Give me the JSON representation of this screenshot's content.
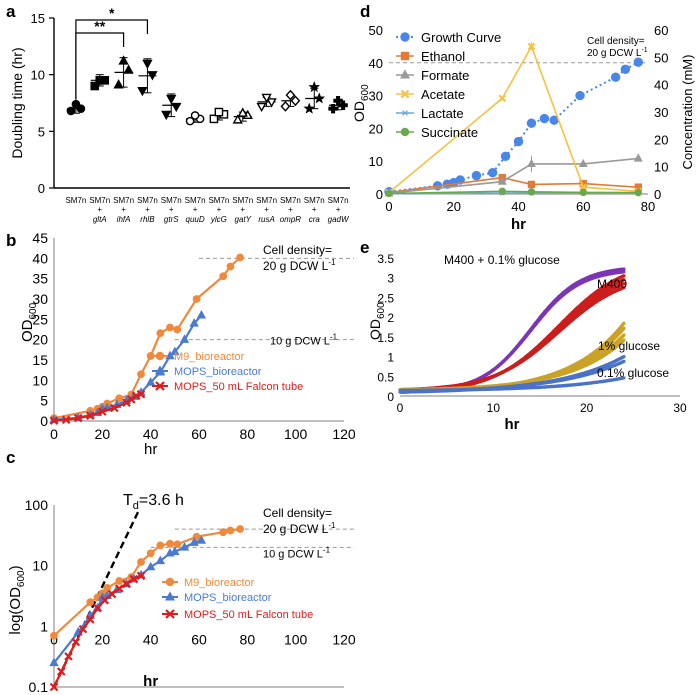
{
  "chart_data": [
    {
      "panel": "a",
      "type": "scatter",
      "ylabel": "Doubling time (hr)",
      "ylim": [
        0,
        15
      ],
      "yticks": [
        0,
        5,
        10,
        15
      ],
      "categories": [
        {
          "top": "SM7n",
          "mid": "",
          "gene": ""
        },
        {
          "top": "SM7n",
          "mid": "+",
          "gene": "gltA"
        },
        {
          "top": "SM7n",
          "mid": "+",
          "gene": "ihfA"
        },
        {
          "top": "SM7n",
          "mid": "+",
          "gene": "rhlB"
        },
        {
          "top": "SM7n",
          "mid": "+",
          "gene": "gtrS"
        },
        {
          "top": "SM7n",
          "mid": "+",
          "gene": "quuD"
        },
        {
          "top": "SM7n",
          "mid": "+",
          "gene": "ylcG"
        },
        {
          "top": "SM7n",
          "mid": "+",
          "gene": "gatY"
        },
        {
          "top": "SM7n",
          "mid": "+",
          "gene": "rusA"
        },
        {
          "top": "SM7n",
          "mid": "+",
          "gene": "ompR"
        },
        {
          "top": "SM7n",
          "mid": "+",
          "gene": "cra"
        },
        {
          "top": "SM7n",
          "mid": "+",
          "gene": "gadW"
        }
      ],
      "groups": [
        {
          "marker": "circle",
          "filled": true,
          "mean": 7.0,
          "sd": 0.4,
          "points": [
            6.8,
            7.0,
            7.4
          ]
        },
        {
          "marker": "square",
          "filled": true,
          "mean": 9.5,
          "sd": 0.5,
          "points": [
            9.0,
            9.5,
            9.5
          ]
        },
        {
          "marker": "triangle",
          "filled": true,
          "mean": 10.2,
          "sd": 1.3,
          "points": [
            9.1,
            10.4,
            11.2
          ]
        },
        {
          "marker": "triangle-down",
          "filled": true,
          "mean": 9.9,
          "sd": 1.5,
          "points": [
            8.6,
            10.0,
            11.0
          ]
        },
        {
          "marker": "triangle-down",
          "filled": true,
          "mean": 7.3,
          "sd": 1.0,
          "points": [
            6.5,
            7.2,
            7.9
          ]
        },
        {
          "marker": "circle",
          "filled": false,
          "mean": 6.1,
          "sd": 0.3,
          "points": [
            5.9,
            6.1,
            6.4
          ]
        },
        {
          "marker": "square",
          "filled": false,
          "mean": 6.4,
          "sd": 0.4,
          "points": [
            6.1,
            6.5,
            6.7
          ]
        },
        {
          "marker": "triangle",
          "filled": false,
          "mean": 6.3,
          "sd": 0.4,
          "points": [
            6.0,
            6.4,
            6.6
          ]
        },
        {
          "marker": "triangle-down",
          "filled": false,
          "mean": 7.6,
          "sd": 0.4,
          "points": [
            7.2,
            7.6,
            8.0
          ]
        },
        {
          "marker": "diamond",
          "filled": false,
          "mean": 7.7,
          "sd": 0.5,
          "points": [
            7.2,
            7.7,
            8.2
          ]
        },
        {
          "marker": "star",
          "filled": true,
          "mean": 7.9,
          "sd": 0.9,
          "points": [
            7.0,
            7.9,
            8.9
          ]
        },
        {
          "marker": "cross",
          "filled": true,
          "mean": 7.3,
          "sd": 0.4,
          "points": [
            7.0,
            7.3,
            7.7
          ]
        }
      ],
      "significance": [
        {
          "from": 0,
          "to": 3,
          "label": "*"
        },
        {
          "from": 0,
          "to": 2,
          "label": "**"
        }
      ]
    },
    {
      "panel": "b",
      "type": "line",
      "xlabel": "hr",
      "ylabel": "OD600",
      "xlim": [
        0,
        120
      ],
      "ylim": [
        0,
        45
      ],
      "xticks": [
        0,
        20,
        40,
        60,
        80,
        100,
        120
      ],
      "yticks": [
        0,
        5,
        10,
        15,
        20,
        25,
        30,
        35,
        40,
        45
      ],
      "reference_lines": [
        {
          "y": 40,
          "label": "Cell density=",
          "sublabel": "20 g DCW L-1"
        },
        {
          "y": 20,
          "label": "10 g DCW L-1"
        }
      ],
      "series": [
        {
          "name": "M9_bioreactor",
          "color": "#f0893c",
          "marker": "circle",
          "x": [
            0,
            15,
            18,
            20,
            22,
            27,
            32,
            36,
            40,
            44,
            48,
            51,
            59,
            70,
            73,
            77
          ],
          "y": [
            0.7,
            2.5,
            3.0,
            3.5,
            4.3,
            5.6,
            6.5,
            11.5,
            16.0,
            21.6,
            23.0,
            22.5,
            30.0,
            35.6,
            38.0,
            40.2
          ]
        },
        {
          "name": "MOPS_bioreactor",
          "color": "#4a7bd0",
          "marker": "triangle",
          "x": [
            0,
            10,
            15,
            18,
            20,
            22,
            26,
            30,
            33,
            36,
            40,
            44,
            48,
            50,
            54,
            58,
            61
          ],
          "y": [
            0.3,
            0.8,
            1.5,
            2.0,
            3.0,
            3.2,
            4.0,
            5.0,
            6.0,
            7.0,
            9.5,
            12.0,
            16.0,
            17.0,
            20.0,
            24.0,
            26.0
          ]
        },
        {
          "name": "MOPS_50 mL Falcon tube",
          "color": "#e01b1b",
          "marker": "x",
          "x": [
            0,
            5,
            10,
            15,
            20,
            25,
            30,
            32,
            34,
            36
          ],
          "y": [
            0.1,
            0.3,
            0.7,
            1.3,
            2.3,
            3.2,
            4.5,
            5.3,
            6.2,
            6.6
          ]
        }
      ],
      "legend": [
        "M9_bioreactor",
        "MOPS_bioreactor",
        "MOPS_50 mL Falcon tube"
      ]
    },
    {
      "panel": "c",
      "type": "line",
      "xlabel": "hr",
      "ylabel": "log(OD600)",
      "yscale": "log",
      "xlim": [
        0,
        120
      ],
      "ylim": [
        0.1,
        100
      ],
      "xticks": [
        0,
        20,
        40,
        60,
        80,
        100,
        120
      ],
      "yticks": [
        0.1,
        1,
        10,
        100
      ],
      "annotation": "Td=3.6 h",
      "reference_lines": [
        {
          "y": 40,
          "label": "Cell density=",
          "sublabel": "20 g DCW L-1"
        },
        {
          "y": 20,
          "label": "10 g DCW L-1"
        }
      ],
      "fit_line": {
        "x": [
          0,
          35
        ],
        "y": [
          0.1,
          80
        ],
        "style": "dashed"
      },
      "series": [
        {
          "name": "M9_bioreactor",
          "color": "#f0893c",
          "marker": "circle",
          "x": [
            0,
            15,
            18,
            20,
            22,
            27,
            32,
            36,
            40,
            44,
            48,
            51,
            59,
            70,
            73,
            77
          ],
          "y": [
            0.7,
            2.5,
            3.0,
            3.5,
            4.3,
            5.6,
            6.5,
            11.5,
            16.0,
            21.6,
            23.0,
            22.5,
            30.0,
            35.6,
            38.0,
            40.2
          ]
        },
        {
          "name": "MOPS_bioreactor",
          "color": "#4a7bd0",
          "marker": "triangle",
          "x": [
            0,
            10,
            15,
            18,
            20,
            22,
            26,
            30,
            33,
            36,
            40,
            44,
            48,
            50,
            54,
            58,
            61
          ],
          "y": [
            0.25,
            0.8,
            1.5,
            2.0,
            3.0,
            3.2,
            4.0,
            5.0,
            6.0,
            7.0,
            9.5,
            12.0,
            16.0,
            17.0,
            20.0,
            24.0,
            26.0
          ]
        },
        {
          "name": "MOPS_50 mL Falcon tube",
          "color": "#e01b1b",
          "marker": "x",
          "x": [
            0,
            3,
            6,
            9,
            12,
            15,
            18,
            21,
            24,
            27,
            30,
            33,
            36
          ],
          "y": [
            0.1,
            0.18,
            0.32,
            0.55,
            0.9,
            1.3,
            2.0,
            2.7,
            3.4,
            4.2,
            5.0,
            6.0,
            6.8
          ]
        }
      ],
      "legend": [
        "M9_bioreactor",
        "MOPS_bioreactor",
        "MOPS_50 mL Falcon tube"
      ]
    },
    {
      "panel": "d",
      "type": "line",
      "xlabel": "hr",
      "ylabel": "OD600",
      "y2label": "Concentration (mM)",
      "xlim": [
        0,
        80
      ],
      "ylim": [
        0,
        50
      ],
      "y2lim": [
        0,
        60
      ],
      "xticks": [
        0,
        20,
        40,
        60,
        80
      ],
      "yticks": [
        0,
        10,
        20,
        30,
        40,
        50
      ],
      "y2ticks": [
        0,
        10,
        20,
        30,
        40,
        50,
        60
      ],
      "reference_lines": [
        {
          "y": 40,
          "label": "Cell density=",
          "sublabel": "20 g DCW L-1"
        }
      ],
      "series": [
        {
          "name": "Growth Curve",
          "axis": "left",
          "color": "#4a86e8",
          "marker": "circle",
          "dotted": true,
          "x": [
            0,
            15,
            18,
            20,
            22,
            27,
            32,
            36,
            40,
            44,
            48,
            51,
            59,
            70,
            73,
            77
          ],
          "y": [
            0.7,
            2.5,
            3.0,
            3.5,
            4.3,
            5.6,
            6.5,
            11.5,
            16.0,
            21.6,
            23.0,
            22.5,
            30.0,
            35.6,
            38.0,
            40.2
          ]
        },
        {
          "name": "Ethanol",
          "axis": "right",
          "color": "#e07b39",
          "marker": "square",
          "x": [
            0,
            35,
            44,
            60,
            77
          ],
          "y": [
            0.5,
            6.0,
            3.5,
            3.8,
            2.5
          ]
        },
        {
          "name": "Formate",
          "axis": "right",
          "color": "#999999",
          "marker": "triangle",
          "x": [
            0,
            35,
            44,
            60,
            77
          ],
          "y": [
            0.3,
            4.5,
            11.0,
            11.0,
            13.0
          ]
        },
        {
          "name": "Acetate",
          "axis": "right",
          "color": "#f5c242",
          "marker": "x",
          "x": [
            0,
            35,
            44,
            60,
            77
          ],
          "y": [
            0.5,
            35.0,
            54.0,
            2.5,
            1.0
          ]
        },
        {
          "name": "Lactate",
          "axis": "right",
          "color": "#6fa8dc",
          "marker": "asterisk",
          "x": [
            0,
            35,
            44,
            60,
            77
          ],
          "y": [
            0.1,
            0.3,
            0.3,
            0.3,
            0.3
          ]
        },
        {
          "name": "Succinate",
          "axis": "right",
          "color": "#6aa84f",
          "marker": "circle",
          "x": [
            0,
            35,
            44,
            60,
            77
          ],
          "y": [
            0.2,
            1.0,
            0.8,
            0.6,
            0.5
          ]
        }
      ],
      "legend": [
        "Growth Curve",
        "Ethanol",
        "Formate",
        "Acetate",
        "Lactate",
        "Succinate"
      ]
    },
    {
      "panel": "e",
      "type": "line",
      "xlabel": "hr",
      "ylabel": "OD600",
      "xlim": [
        0,
        30
      ],
      "ylim": [
        0,
        3.5
      ],
      "xticks": [
        0,
        10,
        20,
        30
      ],
      "yticks": [
        0,
        0.5,
        1,
        1.5,
        2,
        2.5,
        3,
        3.5
      ],
      "series": [
        {
          "name": "M400 + 0.1% glucose",
          "color": "#7b35b5",
          "replicates": 2,
          "final": [
            3.22,
            3.15
          ],
          "midpoint": 14,
          "rate": 0.38
        },
        {
          "name": "M400",
          "color": "#cc1d1d",
          "replicates": 4,
          "final": [
            3.05,
            2.95,
            2.85,
            2.75
          ],
          "midpoint": 17,
          "rate": 0.28
        },
        {
          "name": "1% glucose",
          "color": "#c9a227",
          "replicates": 4,
          "final": [
            1.85,
            1.72,
            1.55,
            1.42
          ],
          "midpoint": 26,
          "rate": 0.17
        },
        {
          "name": "0.1% glucose",
          "color": "#4a72c8",
          "replicates": 3,
          "final": [
            1.0,
            0.88,
            0.46
          ],
          "midpoint": 32,
          "rate": 0.14
        }
      ],
      "labels": [
        "M400 + 0.1% glucose",
        "M400",
        "1% glucose",
        "0.1% glucose"
      ]
    }
  ],
  "panel_letters": [
    "a",
    "b",
    "c",
    "d",
    "e"
  ],
  "units": {
    "dcw": "g DCW L",
    "dcw_exp": "-1",
    "od_sub": "600",
    "td_sub": "d"
  }
}
